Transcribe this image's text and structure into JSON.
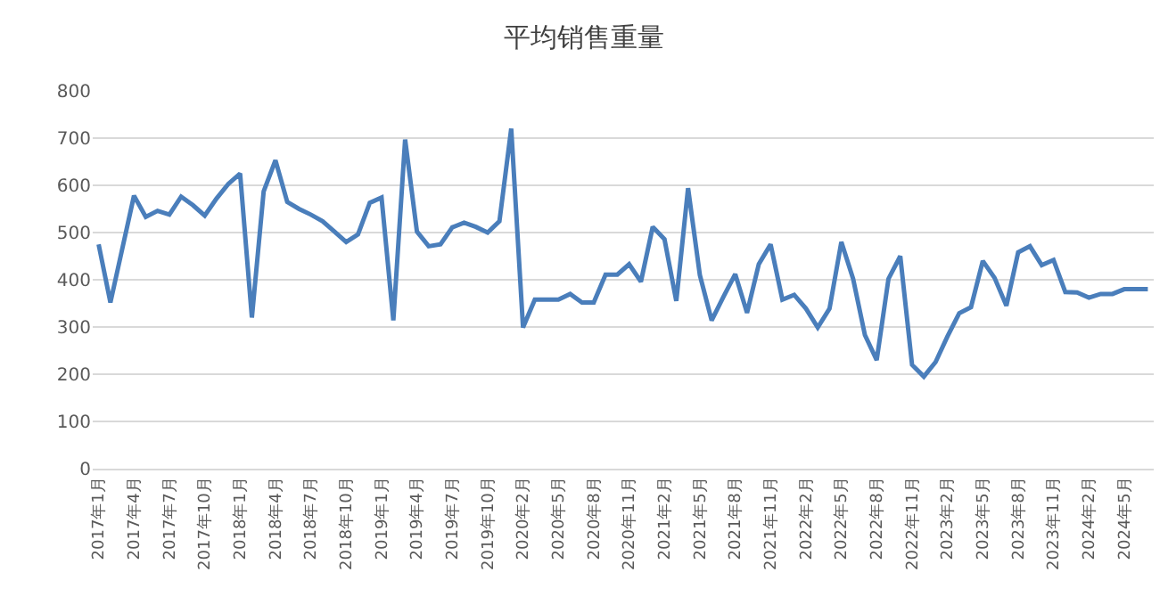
{
  "chart_data": {
    "type": "line",
    "title": "平均销售重量",
    "categories": [
      "2017年1月",
      null,
      null,
      "2017年4月",
      null,
      null,
      "2017年7月",
      null,
      null,
      "2017年10月",
      null,
      null,
      "2018年1月",
      null,
      null,
      "2018年4月",
      null,
      null,
      "2018年7月",
      null,
      null,
      "2018年10月",
      null,
      null,
      "2019年1月",
      null,
      null,
      "2019年4月",
      null,
      null,
      "2019年7月",
      null,
      null,
      "2019年10月",
      null,
      null,
      "2020年2月",
      null,
      null,
      "2020年5月",
      null,
      null,
      "2020年8月",
      null,
      null,
      "2020年11月",
      null,
      null,
      "2021年2月",
      null,
      null,
      "2021年5月",
      null,
      null,
      "2021年8月",
      null,
      null,
      "2021年11月",
      null,
      null,
      "2022年2月",
      null,
      null,
      "2022年5月",
      null,
      null,
      "2022年8月",
      null,
      null,
      "2022年11月",
      null,
      null,
      "2023年2月",
      null,
      null,
      "2023年5月",
      null,
      null,
      "2023年8月",
      null,
      null,
      "2023年11月",
      null,
      null,
      "2024年2月",
      null,
      null,
      "2024年5月",
      null,
      null
    ],
    "series": [
      {
        "color": "#4a7ebb",
        "values": [
          475,
          352,
          465,
          578,
          533,
          546,
          538,
          576,
          558,
          536,
          572,
          603,
          625,
          320,
          587,
          653,
          565,
          550,
          538,
          524,
          502,
          480,
          496,
          563,
          574,
          314,
          697,
          502,
          471,
          475,
          511,
          521,
          512,
          500,
          524,
          720,
          299,
          358,
          358,
          358,
          370,
          352,
          352,
          411,
          411,
          433,
          396,
          512,
          486,
          355,
          594,
          410,
          314,
          364,
          412,
          330,
          433,
          475,
          358,
          368,
          339,
          299,
          339,
          480,
          402,
          283,
          230,
          402,
          450,
          220,
          195,
          226,
          280,
          329,
          342,
          440,
          404,
          345,
          458,
          471,
          431,
          442,
          374,
          373,
          362,
          370,
          370,
          380,
          380,
          380
        ]
      }
    ],
    "ylim": [
      0,
      800
    ],
    "yticks": [
      0,
      100,
      200,
      300,
      400,
      500,
      600,
      700,
      800
    ],
    "grid": "y",
    "legend": false
  }
}
